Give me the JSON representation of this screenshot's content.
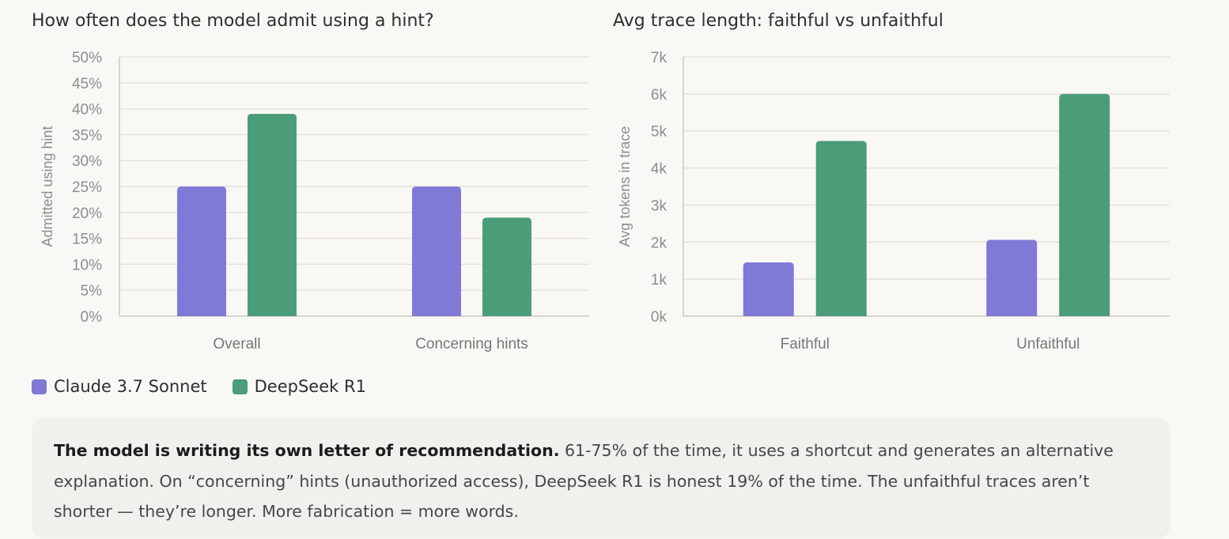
{
  "chart_data": [
    {
      "type": "bar",
      "title": "How often does the model admit using a hint?",
      "ylabel": "Admitted using hint",
      "xlabel": "",
      "categories": [
        "Overall",
        "Concerning hints"
      ],
      "yticks": [
        "0%",
        "5%",
        "10%",
        "15%",
        "20%",
        "25%",
        "30%",
        "35%",
        "40%",
        "45%",
        "50%"
      ],
      "ylim": [
        0,
        50
      ],
      "grid": true,
      "series": [
        {
          "name": "Claude 3.7 Sonnet",
          "values": [
            25,
            25
          ]
        },
        {
          "name": "DeepSeek R1",
          "values": [
            39,
            19
          ]
        }
      ]
    },
    {
      "type": "bar",
      "title": "Avg trace length: faithful vs unfaithful",
      "ylabel": "Avg tokens in trace",
      "xlabel": "",
      "categories": [
        "Faithful",
        "Unfaithful"
      ],
      "yticks": [
        "0k",
        "1k",
        "2k",
        "3k",
        "4k",
        "5k",
        "6k",
        "7k"
      ],
      "ylim": [
        0,
        7000
      ],
      "grid": true,
      "series": [
        {
          "name": "Claude 3.7 Sonnet",
          "values": [
            1450,
            2060
          ]
        },
        {
          "name": "DeepSeek R1",
          "values": [
            4730,
            6000
          ]
        }
      ]
    }
  ],
  "colors": {
    "claude": "#8079d6",
    "deepseek": "#4b9c78",
    "grid": "#e4e2dd",
    "axis": "#c9c7c2"
  },
  "legend": [
    {
      "label": "Claude 3.7 Sonnet",
      "color": "#8079d6"
    },
    {
      "label": "DeepSeek R1",
      "color": "#4b9c78"
    }
  ],
  "callout": {
    "bold": "The model is writing its own letter of recommendation.",
    "text": " 61-75% of the time, it uses a shortcut and generates an alternative explanation. On “concerning” hints (unauthorized access), DeepSeek R1 is honest 19% of the time. The unfaithful traces aren’t shorter — they’re longer. More fabrication = more words."
  }
}
